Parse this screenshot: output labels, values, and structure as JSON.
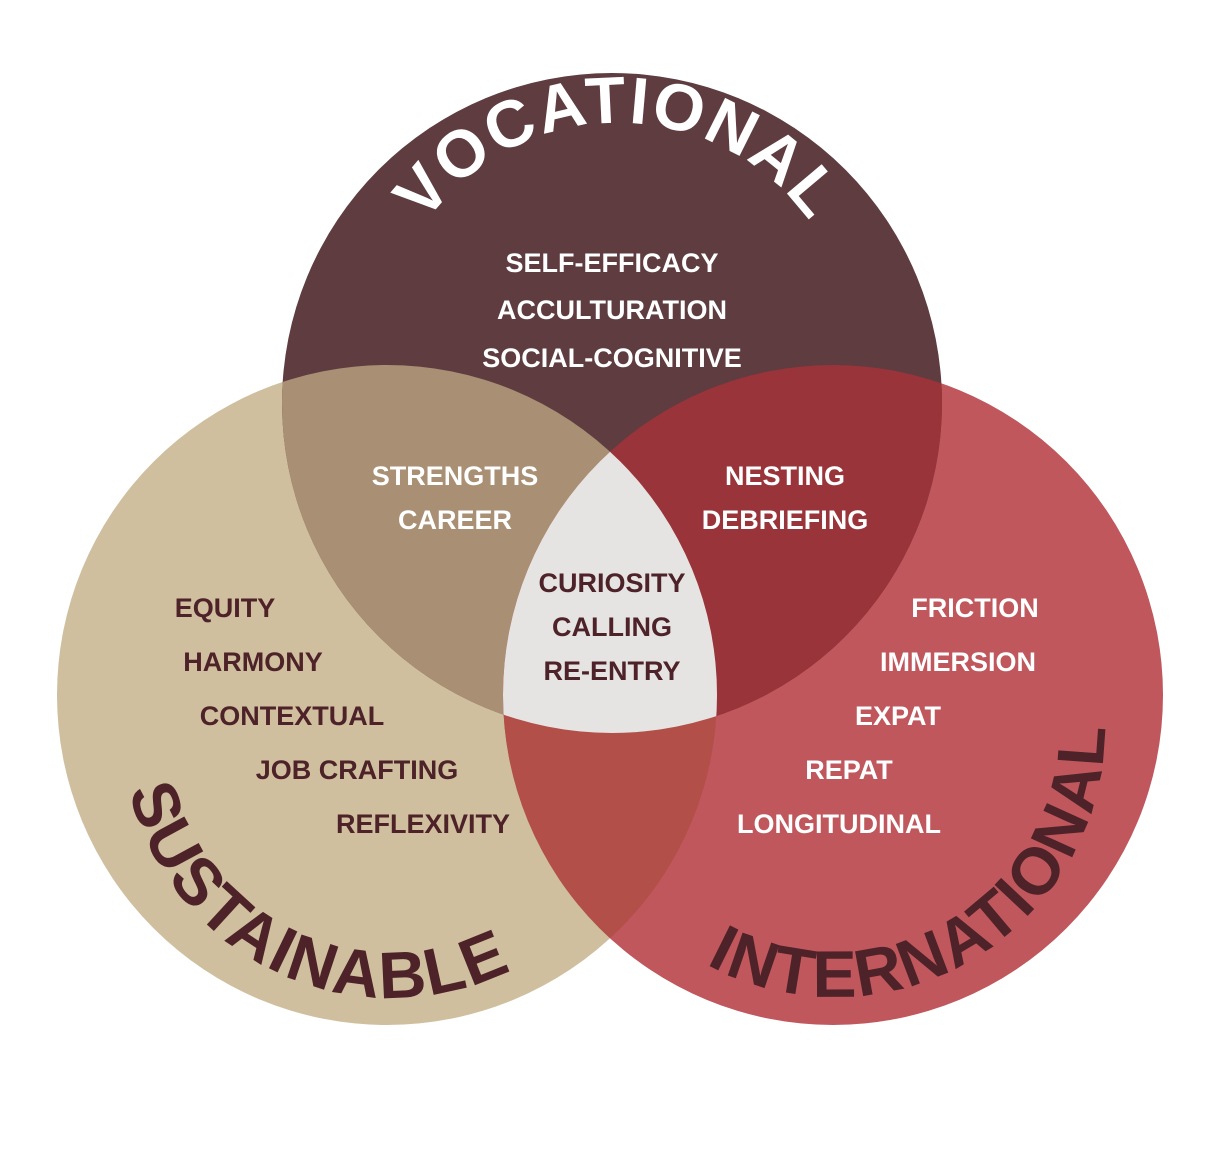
{
  "colors": {
    "vocational": "#5e3c40",
    "sustainable": "#cfbf9e",
    "international": "#bf575c",
    "voc_sus": "#a98f73",
    "voc_int": "#98343a",
    "sus_int": "#b14f48",
    "center": "#e6e4e2",
    "light_text": "#ffffff",
    "dark_text": "#4d2228"
  },
  "circles": {
    "vocational": {
      "title": "VOCATIONAL",
      "items": [
        "SELF-EFFICACY",
        "ACCULTURATION",
        "SOCIAL-COGNITIVE"
      ]
    },
    "sustainable": {
      "title": "SUSTAINABLE",
      "items": [
        "EQUITY",
        "HARMONY",
        "CONTEXTUAL",
        "JOB CRAFTING",
        "REFLEXIVITY"
      ]
    },
    "international": {
      "title": "INTERNATIONAL",
      "items": [
        "FRICTION",
        "IMMERSION",
        "EXPAT",
        "REPAT",
        "LONGITUDINAL"
      ]
    }
  },
  "overlaps": {
    "vocational_sustainable": [
      "STRENGTHS",
      "CAREER"
    ],
    "vocational_international": [
      "NESTING",
      "DEBRIEFING"
    ],
    "center": [
      "CURIOSITY",
      "CALLING",
      "RE-ENTRY"
    ]
  }
}
